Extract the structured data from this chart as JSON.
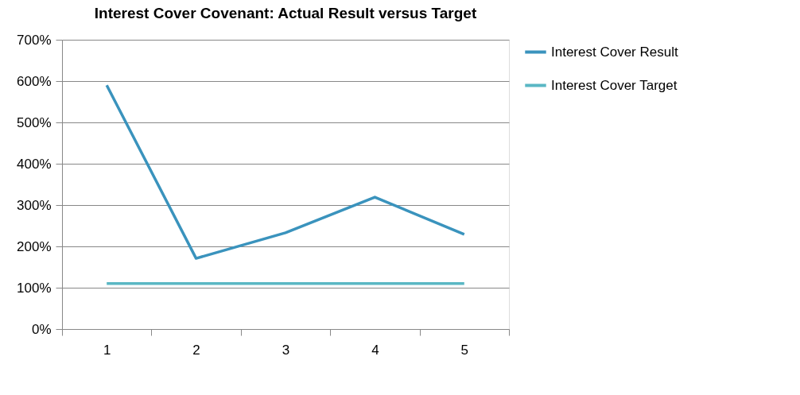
{
  "chart_data": {
    "type": "line",
    "title": "Interest Cover Covenant: Actual Result versus Target",
    "categories": [
      "1",
      "2",
      "3",
      "4",
      "5"
    ],
    "series": [
      {
        "name": "Interest Cover Result",
        "color": "#3a93bd",
        "values": [
          590,
          171,
          233,
          319,
          229
        ]
      },
      {
        "name": "Interest Cover Target",
        "color": "#5ab7c4",
        "values": [
          110,
          110,
          110,
          110,
          110
        ]
      }
    ],
    "ylim": [
      0,
      700
    ],
    "yticks": [
      {
        "value": 0,
        "label": "0%"
      },
      {
        "value": 100,
        "label": "100%"
      },
      {
        "value": 200,
        "label": "200%"
      },
      {
        "value": 300,
        "label": "300%"
      },
      {
        "value": 400,
        "label": "400%"
      },
      {
        "value": 500,
        "label": "500%"
      },
      {
        "value": 600,
        "label": "600%"
      },
      {
        "value": 700,
        "label": "700%"
      }
    ],
    "grid": "y",
    "legend": "right",
    "marker": "none",
    "line_style": "solid"
  }
}
